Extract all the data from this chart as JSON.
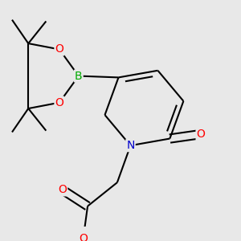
{
  "bg_color": "#e8e8e8",
  "atom_colors": {
    "C": "#000000",
    "N": "#0000cc",
    "O": "#ff0000",
    "B": "#00aa00"
  },
  "bond_color": "#000000",
  "bond_width": 1.5,
  "figsize": [
    3.0,
    3.0
  ],
  "dpi": 100
}
